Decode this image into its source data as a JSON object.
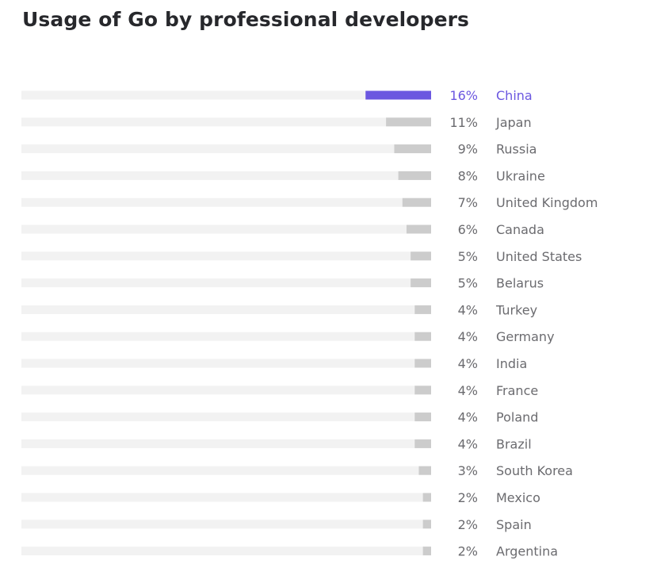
{
  "chart_data": {
    "type": "bar",
    "orientation": "horizontal",
    "title": "Usage of Go by professional developers",
    "categories": [
      "China",
      "Japan",
      "Russia",
      "Ukraine",
      "United Kingdom",
      "Canada",
      "United States",
      "Belarus",
      "Turkey",
      "Germany",
      "India",
      "France",
      "Poland",
      "Brazil",
      "South Korea",
      "Mexico",
      "Spain",
      "Argentina"
    ],
    "values": [
      16,
      11,
      9,
      8,
      7,
      6,
      5,
      5,
      4,
      4,
      4,
      4,
      4,
      4,
      3,
      2,
      2,
      2
    ],
    "value_labels": [
      "16%",
      "11%",
      "9%",
      "8%",
      "7%",
      "6%",
      "5%",
      "5%",
      "4%",
      "4%",
      "4%",
      "4%",
      "4%",
      "4%",
      "3%",
      "2%",
      "2%",
      "2%"
    ],
    "unit": "%",
    "xlim": [
      0,
      100
    ],
    "highlighted_category": "China",
    "colors": {
      "highlight": "#6b57e0",
      "bar": "#cccccc",
      "track": "#f2f2f2",
      "title": "#27282c",
      "label": "#6b6b6f"
    },
    "grid": false,
    "legend": "none"
  }
}
